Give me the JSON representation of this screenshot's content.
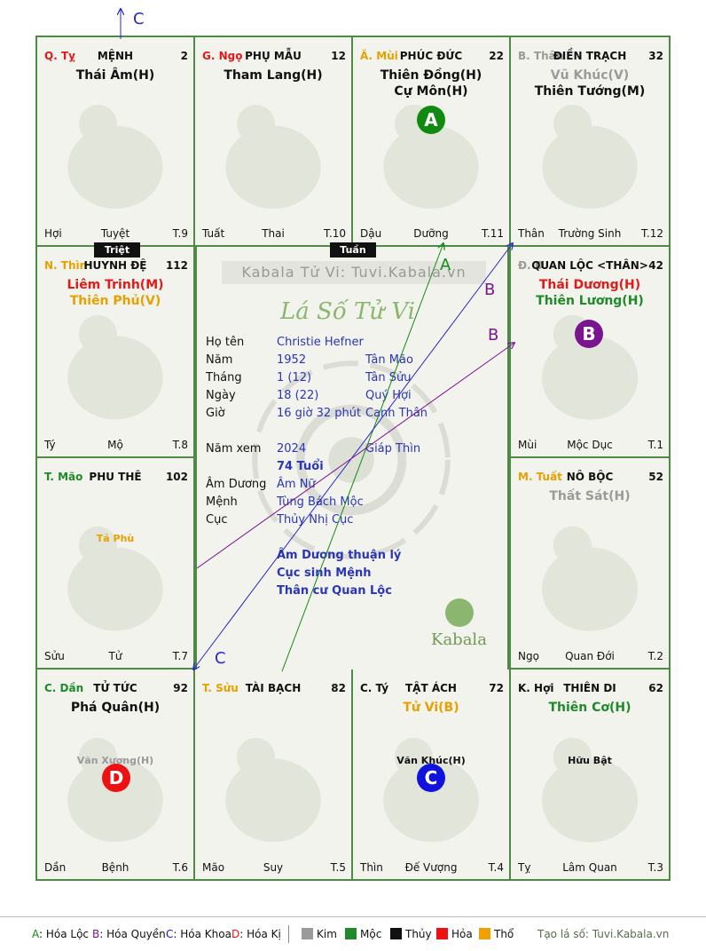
{
  "palaces": [
    {
      "id": "ty",
      "can_chi": "Q. Tỵ",
      "can_chi_color": "#e11a1a",
      "name": "MỆNH",
      "age": "2",
      "stars": [
        {
          "text": "Thái Âm(H)",
          "color": "#111111"
        }
      ],
      "minor": "",
      "footer": {
        "left": "Hợi",
        "mid": "Tuyệt",
        "right": "T.9"
      }
    },
    {
      "id": "ngo",
      "can_chi": "G. Ngọ",
      "can_chi_color": "#e11a1a",
      "name": "PHỤ MẪU",
      "age": "12",
      "stars": [
        {
          "text": "Tham Lang(H)",
          "color": "#111111"
        }
      ],
      "minor": "",
      "footer": {
        "left": "Tuất",
        "mid": "Thai",
        "right": "T.10"
      }
    },
    {
      "id": "mui",
      "can_chi": "Ã. Mùi",
      "can_chi_color": "#e8a000",
      "name": "PHÚC ĐỨC",
      "age": "22",
      "stars": [
        {
          "text": "Thiên Đồng(H)",
          "color": "#111111"
        },
        {
          "text": "Cự Môn(H)",
          "color": "#111111"
        }
      ],
      "minor": "",
      "footer": {
        "left": "Dậu",
        "mid": "Dưỡng",
        "right": "T.11"
      }
    },
    {
      "id": "than",
      "can_chi": "B. Thân",
      "can_chi_color": "#9a9a9a",
      "name": "ĐIỀN TRẠCH",
      "age": "32",
      "stars": [
        {
          "text": "Vũ Khúc(V)",
          "color": "#9a9a9a"
        },
        {
          "text": "Thiên Tướng(M)",
          "color": "#111111"
        }
      ],
      "minor": "",
      "footer": {
        "left": "Thân",
        "mid": "Trường Sinh",
        "right": "T.12"
      }
    },
    {
      "id": "thin",
      "can_chi": "N. Thìn",
      "can_chi_color": "#e8a000",
      "name": "HUYNH ĐỆ",
      "age": "112",
      "stars": [
        {
          "text": "Liêm Trinh(M)",
          "color": "#e11a1a"
        },
        {
          "text": "Thiên Phủ(V)",
          "color": "#e8a000"
        }
      ],
      "minor": "",
      "footer": {
        "left": "Tý",
        "mid": "Mộ",
        "right": "T.8"
      }
    },
    {
      "id": "dau",
      "can_chi": "Đ. D",
      "can_chi_color": "#9a9a9a",
      "name": "QUAN LỘC <THÂN>",
      "age": "42",
      "stars": [
        {
          "text": "Thái Dương(H)",
          "color": "#e11a1a"
        },
        {
          "text": "Thiên Lương(H)",
          "color": "#1f8a2a"
        }
      ],
      "minor": "",
      "footer": {
        "left": "Mùi",
        "mid": "Mộc Dục",
        "right": "T.1"
      }
    },
    {
      "id": "mao",
      "can_chi": "T. Mão",
      "can_chi_color": "#1f8a2a",
      "name": "PHU THÊ",
      "age": "102",
      "stars": [],
      "minor": "Tả Phù",
      "minor_color": "#e8a000",
      "footer": {
        "left": "Sửu",
        "mid": "Tử",
        "right": "T.7"
      }
    },
    {
      "id": "tuat",
      "can_chi": "M. Tuất",
      "can_chi_color": "#e8a000",
      "name": "NÔ BỘC",
      "age": "52",
      "stars": [
        {
          "text": "Thất Sát(H)",
          "color": "#9a9a9a"
        }
      ],
      "minor": "",
      "footer": {
        "left": "Ngọ",
        "mid": "Quan Đới",
        "right": "T.2"
      }
    },
    {
      "id": "dan",
      "can_chi": "C. Dần",
      "can_chi_color": "#1f8a2a",
      "name": "TỬ TỨC",
      "age": "92",
      "stars": [
        {
          "text": "Phá Quân(H)",
          "color": "#111111"
        }
      ],
      "minor": "Văn Xương(H)",
      "minor_color": "#9a9a9a",
      "footer": {
        "left": "Dần",
        "mid": "Bệnh",
        "right": "T.6"
      }
    },
    {
      "id": "suu",
      "can_chi": "T. Sửu",
      "can_chi_color": "#e8a000",
      "name": "TÀI BẠCH",
      "age": "82",
      "stars": [],
      "minor": "",
      "footer": {
        "left": "Mão",
        "mid": "Suy",
        "right": "T.5"
      }
    },
    {
      "id": "ty2",
      "can_chi": "C. Tý",
      "can_chi_color": "#111111",
      "name": "TẬT ÁCH",
      "age": "72",
      "stars": [
        {
          "text": "Tử Vi(B)",
          "color": "#e8a000"
        }
      ],
      "minor": "Văn Khúc(H)",
      "minor_color": "#111111",
      "footer": {
        "left": "Thìn",
        "mid": "Đế Vượng",
        "right": "T.4"
      }
    },
    {
      "id": "hoi",
      "can_chi": "K. Hợi",
      "can_chi_color": "#111111",
      "name": "THIÊN DI",
      "age": "62",
      "stars": [
        {
          "text": "Thiên Cơ(H)",
          "color": "#1f8a2a"
        }
      ],
      "minor": "Hữu Bật",
      "minor_color": "#111111",
      "footer": {
        "left": "Tỵ",
        "mid": "Lâm Quan",
        "right": "T.3"
      }
    }
  ],
  "badges": [
    {
      "letter": "A",
      "color": "#118a11",
      "palace": "mui"
    },
    {
      "letter": "B",
      "color": "#7a1590",
      "palace": "dau"
    },
    {
      "letter": "C",
      "color": "#1212dd",
      "palace": "ty2"
    },
    {
      "letter": "D",
      "color": "#ee1111",
      "palace": "dan"
    }
  ],
  "tags": {
    "triet": "Triệt",
    "tuan": "Tuần"
  },
  "center": {
    "watermark": "Kabala Tử Vi: Tuvi.Kabala.vn",
    "logo_title": "Lá Số Tử Vi",
    "brand": "Kabala",
    "rows": [
      {
        "label": "Họ tên",
        "v1": "Christie Hefner",
        "v2": ""
      },
      {
        "label": "Năm",
        "v1": "1952",
        "v2": "Tân Mão"
      },
      {
        "label": "Tháng",
        "v1": "1  (12)",
        "v2": "Tân Sửu"
      },
      {
        "label": "Ngày",
        "v1": "18  (22)",
        "v2": "Quý Hợi"
      },
      {
        "label": "Giờ",
        "v1": "16 giờ 32 phút",
        "v2": "Canh Thân"
      },
      {
        "label": "Năm xem",
        "v1": "2024",
        "v2": "Giáp Thìn"
      },
      {
        "label": "",
        "v1": "74 Tuổi",
        "v2": ""
      },
      {
        "label": "Âm Dương",
        "v1": "Âm Nữ",
        "v2": ""
      },
      {
        "label": "Mệnh",
        "v1": "Tùng Bách Mộc",
        "v2": ""
      },
      {
        "label": "Cục",
        "v1": "Thủy Nhị Cục",
        "v2": ""
      }
    ],
    "notes": [
      "Âm Dương thuận lý",
      "Cục sinh Mệnh",
      "Thân cư Quan Lộc"
    ]
  },
  "arrow_labels": {
    "a": "A",
    "b1": "B",
    "b2": "B",
    "c_top": "C",
    "c_bottom": "C"
  },
  "legend": {
    "items": [
      {
        "key": "A",
        "text": "Hóa Lộc",
        "color": "#118a11"
      },
      {
        "key": "B",
        "text": "Hóa Quyền",
        "color": "#7a1590"
      },
      {
        "key": "C",
        "text": "Hóa Khoa",
        "color": "#1212dd"
      },
      {
        "key": "D",
        "text": "Hóa Kị",
        "color": "#ee1111"
      }
    ],
    "elements": [
      {
        "text": "Kim",
        "color": "#9a9a9a"
      },
      {
        "text": "Mộc",
        "color": "#1f8a2a"
      },
      {
        "text": "Thủy",
        "color": "#111111"
      },
      {
        "text": "Hỏa",
        "color": "#ee1111"
      },
      {
        "text": "Thổ",
        "color": "#f0a000"
      }
    ],
    "site": "Tạo lá số: Tuvi.Kabala.vn"
  }
}
